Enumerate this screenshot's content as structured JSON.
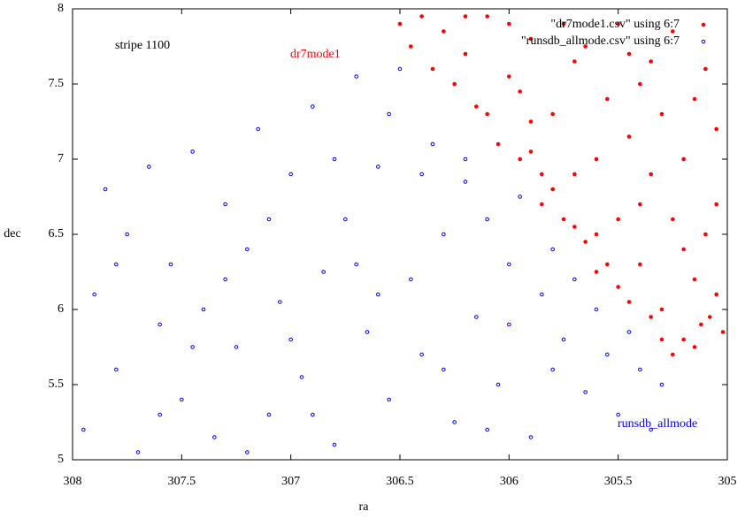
{
  "chart_data": {
    "type": "scatter",
    "x_label": "ra",
    "y_label": "dec",
    "xlim": [
      308,
      305
    ],
    "xticks": [
      308,
      307.5,
      307,
      306.5,
      306,
      305.5,
      305
    ],
    "ylim": [
      5,
      8
    ],
    "yticks": [
      5,
      5.5,
      6,
      6.5,
      7,
      7.5,
      8
    ],
    "annotations": [
      {
        "text": "stripe 1100",
        "color": "#000000"
      },
      {
        "text": "dr7mode1",
        "color": "#ff0000"
      },
      {
        "text": "runsdb_allmode",
        "color": "#0000ff"
      }
    ],
    "legend": "top-right",
    "series": [
      {
        "name": "\"dr7mode1.csv\" using 6:7",
        "color": "#ff0000",
        "x": [
          306.5,
          306.45,
          306.4,
          306.35,
          306.3,
          306.25,
          306.2,
          306.15,
          306.1,
          306.05,
          306.0,
          305.95,
          305.9,
          305.85,
          305.8,
          305.75,
          305.7,
          305.65,
          305.6,
          305.55,
          305.5,
          305.45,
          305.4,
          305.35,
          305.3,
          305.25,
          305.2,
          305.15,
          305.1,
          305.05,
          305.02,
          306.0,
          305.9,
          305.8,
          305.7,
          305.6,
          305.5,
          305.4,
          305.3,
          305.2,
          305.1,
          305.05,
          306.2,
          305.95,
          305.75,
          305.55,
          305.35,
          305.15,
          305.65,
          305.45,
          305.25,
          305.12,
          305.85,
          305.6,
          305.3,
          306.1,
          305.9,
          305.7,
          305.5,
          305.4,
          305.2,
          305.08,
          305.45,
          305.25,
          305.15,
          305.05,
          305.35
        ],
        "values": [
          7.9,
          7.75,
          7.95,
          7.6,
          7.85,
          7.5,
          7.7,
          7.35,
          7.95,
          7.1,
          7.55,
          7.0,
          7.8,
          6.9,
          7.3,
          6.6,
          7.65,
          6.45,
          7.0,
          6.3,
          7.9,
          6.05,
          6.7,
          5.95,
          7.3,
          5.7,
          6.4,
          5.75,
          7.6,
          6.1,
          5.85,
          7.9,
          7.25,
          6.8,
          6.9,
          6.5,
          6.6,
          7.5,
          6.0,
          7.0,
          6.5,
          7.2,
          7.95,
          7.45,
          7.9,
          7.4,
          6.9,
          6.2,
          7.75,
          7.15,
          7.85,
          5.9,
          6.7,
          6.25,
          5.8,
          7.3,
          7.05,
          6.55,
          6.15,
          6.3,
          5.8,
          5.95,
          7.7,
          6.6,
          7.4,
          6.7,
          7.65
        ]
      },
      {
        "name": "\"runsdb_allmode.csv\" using 6:7",
        "color": "#0000ff",
        "x": [
          307.95,
          307.9,
          307.85,
          307.8,
          307.75,
          307.7,
          307.65,
          307.6,
          307.55,
          307.5,
          307.45,
          307.4,
          307.35,
          307.3,
          307.25,
          307.2,
          307.15,
          307.1,
          307.05,
          307.0,
          306.95,
          306.9,
          306.85,
          306.8,
          306.75,
          306.7,
          306.65,
          306.6,
          306.55,
          306.5,
          306.45,
          306.4,
          306.35,
          306.3,
          306.25,
          306.2,
          306.15,
          306.1,
          306.05,
          306.0,
          305.95,
          305.9,
          305.85,
          305.8,
          305.75,
          305.7,
          305.65,
          305.6,
          305.55,
          305.5,
          305.45,
          305.4,
          305.35,
          305.3,
          307.6,
          307.3,
          307.0,
          306.7,
          306.4,
          306.1,
          305.8,
          307.8,
          307.1,
          306.9,
          306.6,
          306.3,
          306.0,
          307.45,
          307.2,
          306.8,
          306.55,
          306.2
        ],
        "values": [
          5.2,
          6.1,
          6.8,
          5.6,
          6.5,
          5.05,
          6.95,
          5.9,
          6.3,
          5.4,
          7.05,
          6.0,
          5.15,
          6.7,
          5.75,
          6.4,
          7.2,
          5.3,
          6.05,
          6.9,
          5.55,
          7.35,
          6.25,
          5.1,
          6.6,
          7.55,
          5.85,
          6.95,
          5.4,
          7.6,
          6.2,
          5.7,
          7.1,
          6.5,
          5.25,
          6.85,
          5.95,
          6.6,
          5.5,
          6.3,
          6.75,
          5.15,
          6.1,
          6.4,
          5.8,
          6.2,
          5.45,
          6.0,
          5.7,
          5.3,
          5.85,
          5.6,
          5.2,
          5.5,
          5.3,
          6.2,
          5.8,
          6.3,
          6.9,
          5.2,
          5.6,
          6.3,
          6.6,
          5.3,
          6.1,
          5.6,
          5.9,
          5.75,
          5.05,
          7.0,
          7.3,
          7.0
        ]
      }
    ]
  }
}
